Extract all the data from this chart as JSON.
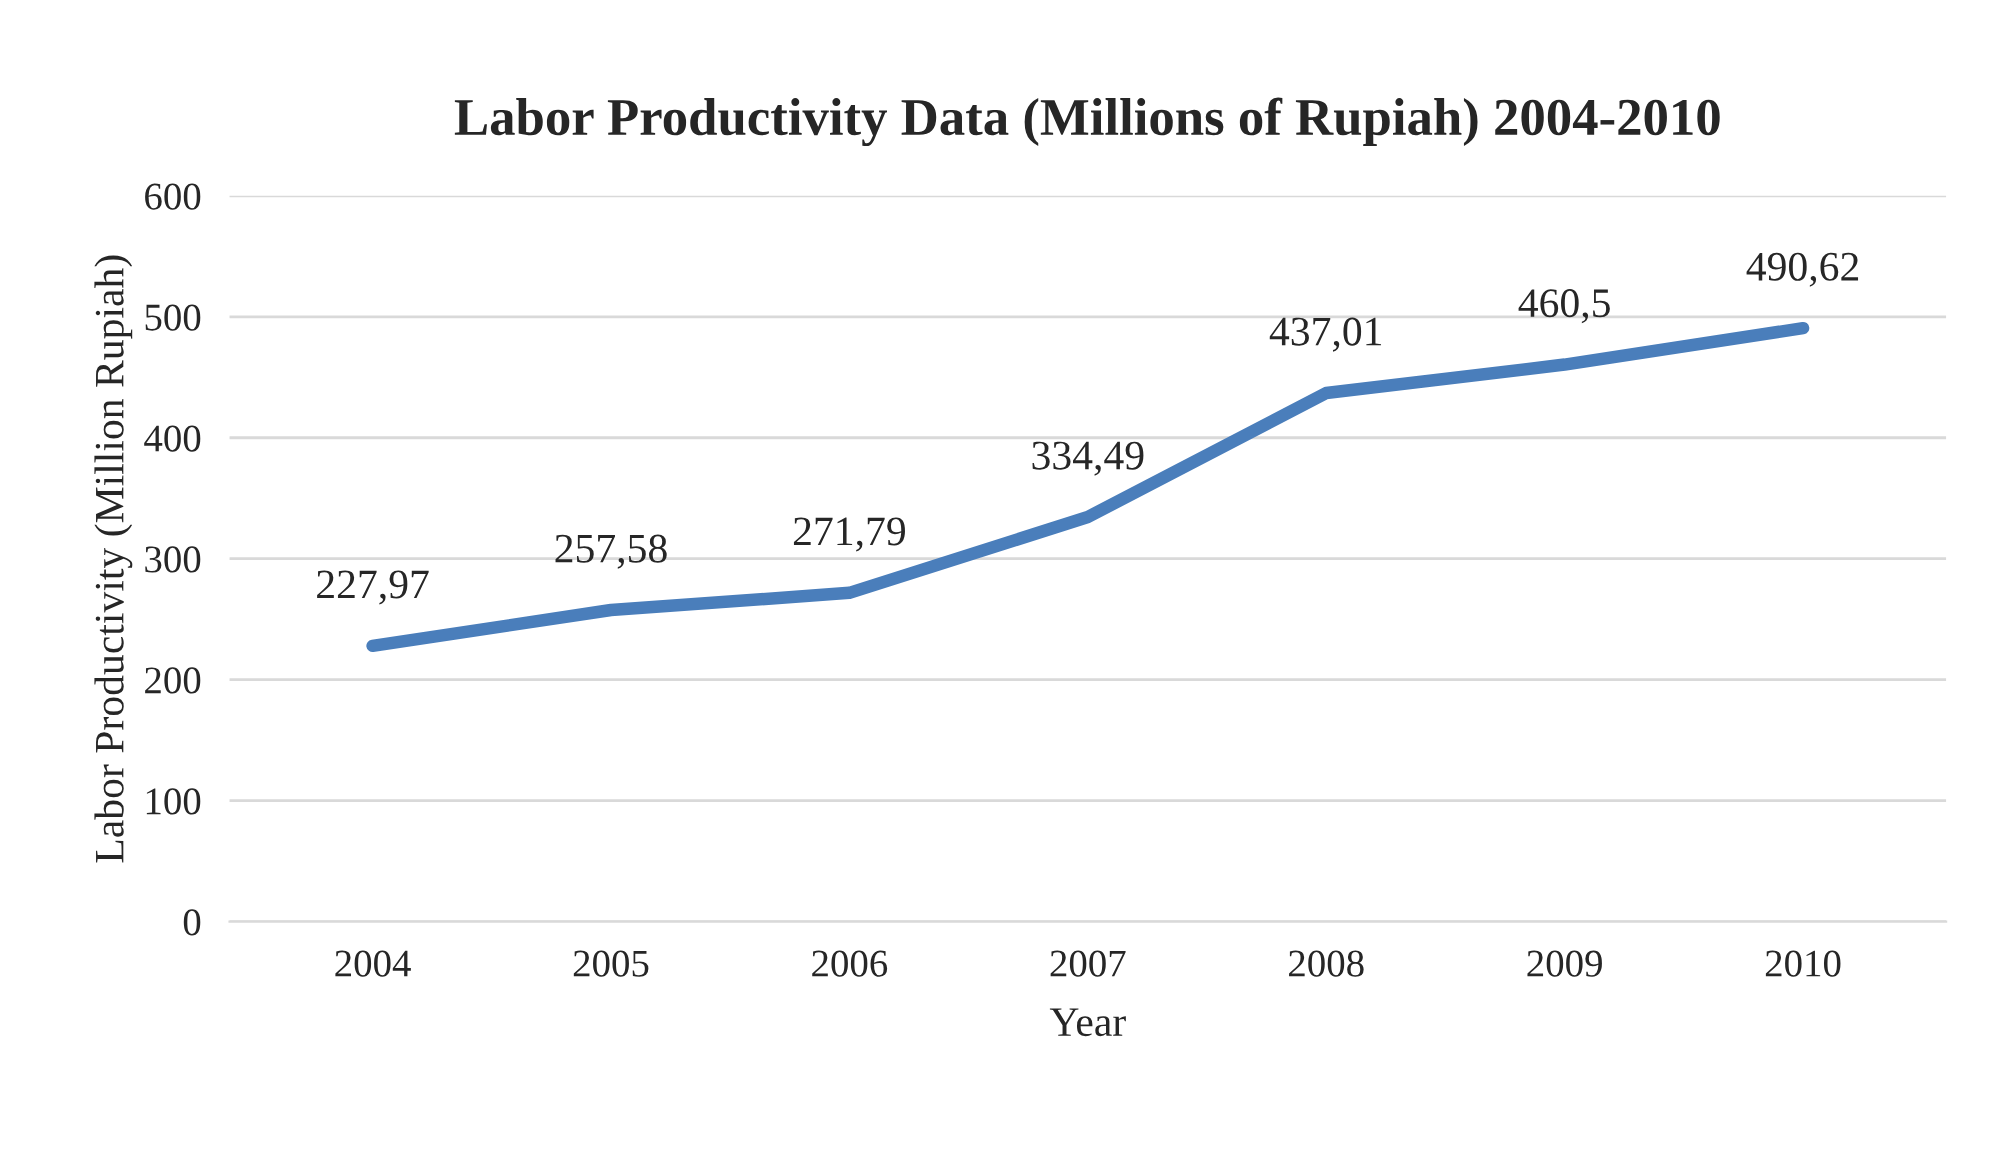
{
  "chart_data": {
    "type": "line",
    "title": "Labor Productivity Data (Millions of Rupiah) 2004-2010",
    "xlabel": "Year",
    "ylabel": "Labor Productivity (Million Rupiah)",
    "categories": [
      "2004",
      "2005",
      "2006",
      "2007",
      "2008",
      "2009",
      "2010"
    ],
    "series": [
      {
        "color": "#4a7ebb",
        "values": [
          227.97,
          257.58,
          271.79,
          334.49,
          437.01,
          460.5,
          490.62
        ],
        "value_labels": [
          "227,97",
          "257,58",
          "271,79",
          "334,49",
          "437,01",
          "460,5",
          "490,62"
        ]
      }
    ],
    "ylim": [
      0,
      600
    ],
    "yticks": [
      0,
      100,
      200,
      300,
      400,
      500,
      600
    ],
    "grid": "y",
    "legend": false,
    "marker": "none",
    "line_style": "solid"
  }
}
